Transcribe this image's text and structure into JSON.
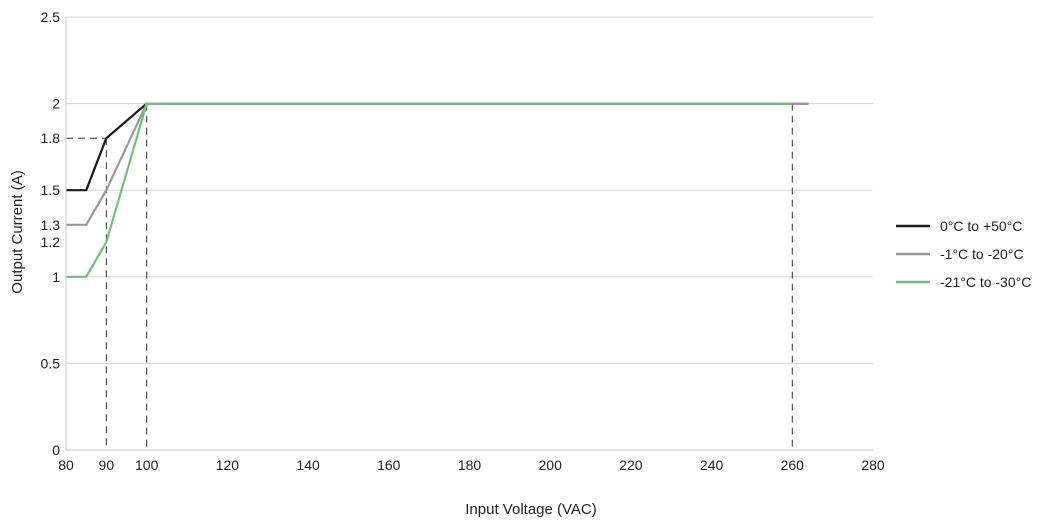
{
  "chart_data": {
    "type": "line",
    "title": "",
    "xlabel": "Input Voltage (VAC)",
    "ylabel": "Output Current (A)",
    "xlim": [
      80,
      280
    ],
    "ylim": [
      0,
      2.5
    ],
    "xticks": [
      "80",
      "90",
      "100",
      "120",
      "140",
      "160",
      "180",
      "200",
      "220",
      "240",
      "260",
      "280"
    ],
    "yticks": [
      "0",
      "0.5",
      "1",
      "1.2",
      "1.3",
      "1.5",
      "1.8",
      "2",
      "2.5"
    ],
    "gridlines_y": [
      0.5,
      1,
      1.5,
      2,
      2.5
    ],
    "grid": true,
    "legend_position": "right",
    "series": [
      {
        "name": "0°C to +50°C",
        "color": "#1a1a1a",
        "x": [
          80,
          85,
          90,
          100,
          260,
          264
        ],
        "y": [
          1.5,
          1.5,
          1.8,
          2,
          2,
          2
        ]
      },
      {
        "name": "-1°C to -20°C",
        "color": "#999999",
        "x": [
          80,
          85,
          90,
          100,
          260,
          264
        ],
        "y": [
          1.3,
          1.3,
          1.5,
          2,
          2,
          2
        ]
      },
      {
        "name": "-21°C to -30°C",
        "color": "#6cc17a",
        "x": [
          80,
          85,
          90,
          100,
          260
        ],
        "y": [
          1,
          1,
          1.2,
          2,
          2
        ]
      }
    ],
    "reference_lines": [
      {
        "x": 90,
        "y": 1.8
      },
      {
        "x": 100,
        "y": 2
      },
      {
        "x": 260,
        "y": 2
      }
    ]
  }
}
